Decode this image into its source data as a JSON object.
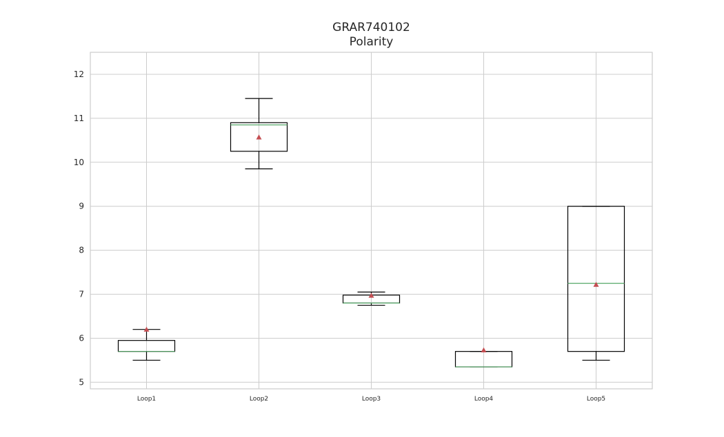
{
  "chart_data": {
    "type": "box",
    "title": "GRAR740102",
    "subtitle": "Polarity",
    "xlabel": "",
    "ylabel": "",
    "ylim": [
      4.85,
      12.5
    ],
    "yticks": [
      5,
      6,
      7,
      8,
      9,
      10,
      11,
      12
    ],
    "grid": true,
    "categories": [
      "Loop1",
      "Loop2",
      "Loop3",
      "Loop4",
      "Loop5"
    ],
    "boxes": [
      {
        "label": "Loop1",
        "whisker_low": 5.5,
        "q1": 5.7,
        "median": 5.7,
        "q3": 5.95,
        "whisker_high": 6.2,
        "mean": 6.2
      },
      {
        "label": "Loop2",
        "whisker_low": 9.85,
        "q1": 10.25,
        "median": 10.85,
        "q3": 10.9,
        "whisker_high": 11.45,
        "mean": 10.57
      },
      {
        "label": "Loop3",
        "whisker_low": 6.75,
        "q1": 6.8,
        "median": 6.8,
        "q3": 6.98,
        "whisker_high": 7.05,
        "mean": 6.97
      },
      {
        "label": "Loop4",
        "whisker_low": 5.35,
        "q1": 5.35,
        "median": 5.35,
        "q3": 5.7,
        "whisker_high": 5.7,
        "mean": 5.73
      },
      {
        "label": "Loop5",
        "whisker_low": 5.5,
        "q1": 5.7,
        "median": 7.25,
        "q3": 9.0,
        "whisker_high": 9.0,
        "mean": 7.22
      }
    ],
    "colors": {
      "box": "#000000",
      "median": "#55a868",
      "mean_marker": "#c44e52",
      "grid": "#cccccc",
      "axes_edge": "#cccccc"
    }
  }
}
